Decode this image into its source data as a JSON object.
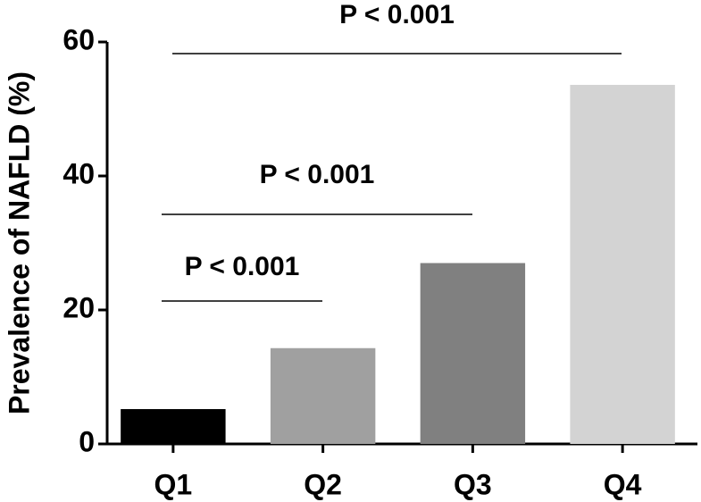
{
  "chart_data": {
    "type": "bar",
    "y_label": "Prevalence of NAFLD (%)",
    "categories": [
      "Q1",
      "Q2",
      "Q3",
      "Q4"
    ],
    "values": [
      5.2,
      14.3,
      27,
      53.6
    ],
    "colors": [
      "#000000",
      "#a0a0a0",
      "#808080",
      "#d3d3d3"
    ],
    "ylim": [
      0,
      60
    ],
    "yticks": [
      0,
      20,
      40,
      60
    ],
    "annotations": [
      {
        "text": "P < 0.001"
      },
      {
        "text": "P < 0.001"
      },
      {
        "text": "P < 0.001"
      }
    ]
  }
}
